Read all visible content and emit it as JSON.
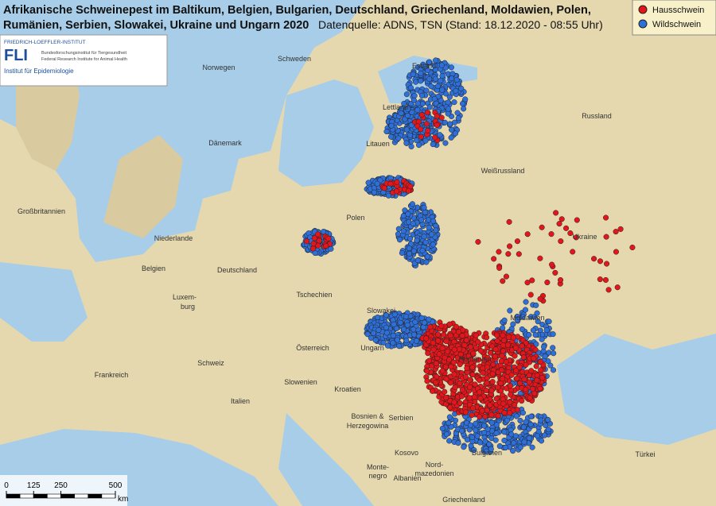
{
  "title": [
    "Afrikanische Schweinepest im Baltikum, Belgien, Bulgarien, Deutschland, Griechenland, Moldawien, Polen,",
    "Rumänien, Serbien, Slowakei, Ukraine und Ungarn 2020"
  ],
  "source": "Datenquelle: ADNS, TSN (Stand: 18.12.2020 - 08:55 Uhr)",
  "legend": [
    {
      "label": "Hausschwein",
      "color": "#e3161b"
    },
    {
      "label": "Wildschwein",
      "color": "#2e6fd8"
    }
  ],
  "logo": {
    "institute": "FRIEDRICH-LOEFFLER-INSTITUT",
    "acronym": "FLI",
    "line1": "Bundesforschungsinstitut für Tiergesundheit",
    "line2": "Federal Research Institute for Animal Health",
    "unit": "Institut für Epidemiologie"
  },
  "countries": [
    "Schweden",
    "Norwegen",
    "Estland",
    "Lettland",
    "Litauen",
    "Dänemark",
    "Russland",
    "Weißrussland",
    "Großbritannien",
    "Polen",
    "Niederlande",
    "Ukraine",
    "Belgien",
    "Deutschland",
    "Luxem-",
    "burg",
    "Tschechien",
    "Slowakei",
    "Moldawien",
    "Österreich",
    "Ungarn",
    "Frankreich",
    "Schweiz",
    "Rumänien",
    "Slowenien",
    "Kroatien",
    "Italien",
    "Serbien",
    "Bosnien &",
    "Herzegowina",
    "Monte-",
    "negro",
    "Kosovo",
    "Bulgarien",
    "Nord-",
    "mazedonien",
    "Albanien",
    "Türkei",
    "Griechenland"
  ],
  "scale": {
    "ticks": [
      0,
      125,
      250,
      500
    ],
    "unit": "km"
  }
}
